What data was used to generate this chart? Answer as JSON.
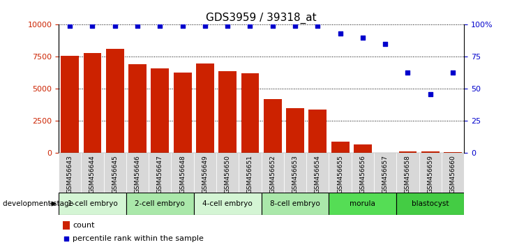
{
  "title": "GDS3959 / 39318_at",
  "samples": [
    "GSM456643",
    "GSM456644",
    "GSM456645",
    "GSM456646",
    "GSM456647",
    "GSM456648",
    "GSM456649",
    "GSM456650",
    "GSM456651",
    "GSM456652",
    "GSM456653",
    "GSM456654",
    "GSM456655",
    "GSM456656",
    "GSM456657",
    "GSM456658",
    "GSM456659",
    "GSM456660"
  ],
  "counts": [
    7600,
    7800,
    8100,
    6900,
    6600,
    6300,
    7000,
    6400,
    6200,
    4200,
    3500,
    3400,
    900,
    700,
    50,
    150,
    150,
    100
  ],
  "percentiles": [
    99,
    99,
    99,
    99,
    99,
    99,
    99,
    99,
    99,
    99,
    99,
    99,
    93,
    90,
    85,
    63,
    46,
    63
  ],
  "stages": [
    {
      "label": "1-cell embryo",
      "start": 0,
      "end": 3,
      "color": "#d4f5d4"
    },
    {
      "label": "2-cell embryo",
      "start": 3,
      "end": 6,
      "color": "#aae8aa"
    },
    {
      "label": "4-cell embryo",
      "start": 6,
      "end": 9,
      "color": "#d4f5d4"
    },
    {
      "label": "8-cell embryo",
      "start": 9,
      "end": 12,
      "color": "#aae8aa"
    },
    {
      "label": "morula",
      "start": 12,
      "end": 15,
      "color": "#55dd55"
    },
    {
      "label": "blastocyst",
      "start": 15,
      "end": 18,
      "color": "#44cc44"
    }
  ],
  "bar_color": "#cc2200",
  "dot_color": "#0000cc",
  "ylim_left": [
    0,
    10000
  ],
  "ylim_right": [
    0,
    100
  ],
  "yticks_left": [
    0,
    2500,
    5000,
    7500,
    10000
  ],
  "yticks_right": [
    0,
    25,
    50,
    75,
    100
  ],
  "bg_color": "#ffffff",
  "tick_bg_color": "#d8d8d8",
  "legend_count_label": "count",
  "legend_pct_label": "percentile rank within the sample",
  "dev_stage_label": "development stage"
}
